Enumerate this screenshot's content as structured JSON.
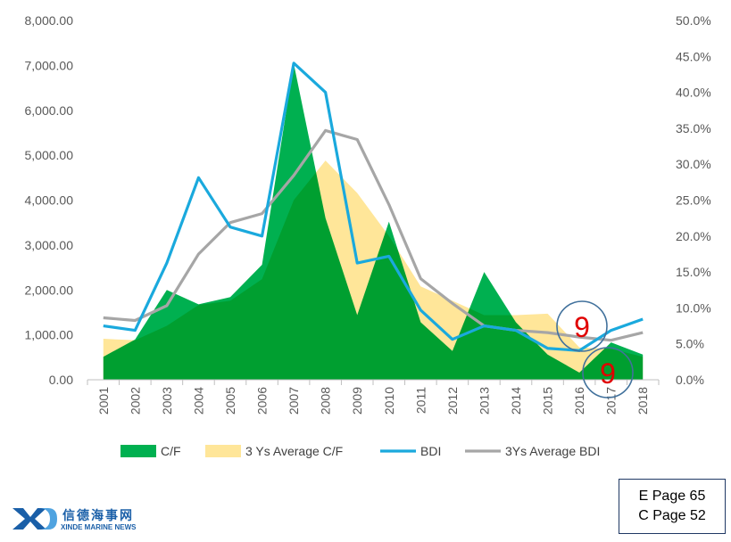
{
  "chart_data": {
    "type": "area",
    "categories": [
      "2001",
      "2002",
      "2003",
      "2004",
      "2005",
      "2006",
      "2007",
      "2008",
      "2009",
      "2010",
      "2011",
      "2012",
      "2013",
      "2014",
      "2015",
      "2016",
      "2017",
      "2018"
    ],
    "left_axis": {
      "ylim": [
        0,
        8000
      ],
      "ticks": [
        "0.00",
        "1,000.00",
        "2,000.00",
        "3,000.00",
        "4,000.00",
        "5,000.00",
        "6,000.00",
        "7,000.00",
        "8,000.00"
      ]
    },
    "right_axis": {
      "ylim": [
        0,
        50
      ],
      "ticks": [
        "0.0%",
        "5.0%",
        "10.0%",
        "15.0%",
        "20.0%",
        "25.0%",
        "30.0%",
        "35.0%",
        "40.0%",
        "45.0%",
        "50.0%"
      ]
    },
    "series": [
      {
        "name": "C/F",
        "chart": "area",
        "axis": "right",
        "color": "#00b050",
        "values": [
          3.2,
          5.6,
          12.5,
          10.5,
          11.5,
          16.0,
          44.0,
          22.5,
          9.0,
          22.0,
          8.0,
          4.0,
          15.0,
          8.0,
          3.5,
          1.0,
          5.2,
          3.5
        ]
      },
      {
        "name": "3 Ys Average C/F",
        "chart": "area",
        "axis": "right",
        "color": "#ffe699",
        "values": [
          5.7,
          5.5,
          7.5,
          10.4,
          11.0,
          14.0,
          25.0,
          30.5,
          26.0,
          20.0,
          13.0,
          11.0,
          9.0,
          9.0,
          9.2,
          4.5,
          4.3,
          3.2
        ]
      },
      {
        "name": "BDI",
        "chart": "line",
        "axis": "left",
        "color": "#1aa9dd",
        "values": [
          1200,
          1100,
          2600,
          4500,
          3400,
          3200,
          7050,
          6400,
          2600,
          2750,
          1550,
          900,
          1200,
          1100,
          700,
          650,
          1100,
          1350
        ]
      },
      {
        "name": "3Ys Average BDI",
        "chart": "line",
        "axis": "left",
        "color": "#a6a6a6",
        "values": [
          1380,
          1320,
          1650,
          2800,
          3500,
          3700,
          4550,
          5550,
          5350,
          3900,
          2250,
          1700,
          1200,
          1100,
          1050,
          950,
          880,
          1050
        ]
      }
    ],
    "annotations": [
      "9",
      "9"
    ],
    "legend_position": "bottom",
    "grid": false
  },
  "page_ref": {
    "line1": "E Page 65",
    "line2": "C Page 52"
  },
  "logo": {
    "cn_text": "信德海事网",
    "en_text": "XINDE MARINE NEWS"
  }
}
